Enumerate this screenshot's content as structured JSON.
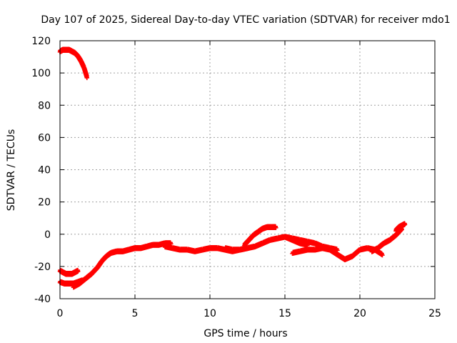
{
  "chart_data": {
    "type": "scatter",
    "title": "Day 107 of 2025, Sidereal Day-to-day VTEC variation (SDTVAR) for receiver mdo1",
    "xlabel": "GPS time / hours",
    "ylabel": "SDTVAR / TECUs",
    "xlim": [
      0,
      25
    ],
    "ylim": [
      -40,
      120
    ],
    "x_ticks": [
      0,
      5,
      10,
      15,
      20,
      25
    ],
    "y_ticks": [
      -40,
      -20,
      0,
      20,
      40,
      60,
      80,
      100,
      120
    ],
    "grid": true,
    "marker_color": "#ff0000",
    "series": [
      {
        "name": "arc-top",
        "x": [
          0.0,
          0.2,
          0.4,
          0.6,
          0.8,
          1.0,
          1.2,
          1.4,
          1.6,
          1.8
        ],
        "y": [
          113,
          114,
          114,
          114,
          113,
          112,
          110,
          107,
          103,
          97
        ]
      },
      {
        "name": "arc-early-upper",
        "x": [
          0.0,
          0.2,
          0.4,
          0.6,
          0.8,
          1.0,
          1.2
        ],
        "y": [
          -23,
          -24,
          -25,
          -25,
          -25,
          -24,
          -23
        ]
      },
      {
        "name": "arc-early-lower",
        "x": [
          0.0,
          0.3,
          0.6,
          0.9,
          1.2,
          1.5
        ],
        "y": [
          -30,
          -31,
          -31,
          -31,
          -30,
          -29
        ]
      },
      {
        "name": "arc-rise",
        "x": [
          0.9,
          1.3,
          1.7,
          2.1,
          2.5,
          2.8,
          3.1,
          3.4,
          3.8,
          4.2,
          4.6,
          5.0,
          5.4,
          5.8,
          6.2,
          6.6,
          7.0,
          7.4
        ],
        "y": [
          -33,
          -31,
          -28,
          -25,
          -21,
          -17,
          -14,
          -12,
          -11,
          -11,
          -10,
          -9,
          -9,
          -8,
          -7,
          -7,
          -6,
          -6
        ]
      },
      {
        "name": "arc-mid",
        "x": [
          7.0,
          7.5,
          8.0,
          8.5,
          9.0,
          9.5,
          10.0,
          10.5,
          11.0,
          11.5,
          12.0,
          12.5
        ],
        "y": [
          -8,
          -9,
          -10,
          -10,
          -11,
          -10,
          -9,
          -9,
          -10,
          -11,
          -10,
          -9
        ]
      },
      {
        "name": "arc-bump",
        "x": [
          12.3,
          12.6,
          12.9,
          13.2,
          13.5,
          13.8,
          14.1,
          14.4
        ],
        "y": [
          -7,
          -4,
          -1,
          1,
          3,
          4,
          4,
          4
        ]
      },
      {
        "name": "arc-late-a",
        "x": [
          11.0,
          11.5,
          12.0,
          12.5,
          13.0,
          13.5,
          14.0,
          14.5,
          15.0,
          15.5,
          16.0,
          16.5
        ],
        "y": [
          -9,
          -10,
          -10,
          -9,
          -8,
          -6,
          -4,
          -3,
          -2,
          -4,
          -6,
          -7
        ]
      },
      {
        "name": "arc-late-b",
        "x": [
          15.0,
          15.5,
          16.0,
          16.5,
          17.0,
          17.5,
          18.0,
          18.5
        ],
        "y": [
          -2,
          -3,
          -4,
          -5,
          -6,
          -8,
          -9,
          -10
        ]
      },
      {
        "name": "arc-late-c",
        "x": [
          15.5,
          16.0,
          16.5,
          17.0,
          17.5,
          18.0,
          18.5,
          19.0,
          19.5,
          20.0,
          20.5,
          21.0,
          21.5
        ],
        "y": [
          -12,
          -11,
          -10,
          -10,
          -9,
          -10,
          -13,
          -16,
          -14,
          -10,
          -9,
          -10,
          -13
        ]
      },
      {
        "name": "arc-late-d",
        "x": [
          20.8,
          21.2,
          21.6,
          22.0,
          22.4,
          22.8
        ],
        "y": [
          -11,
          -9,
          -6,
          -4,
          -1,
          3
        ]
      },
      {
        "name": "arc-end",
        "x": [
          22.4,
          22.6,
          22.8,
          23.0
        ],
        "y": [
          2,
          4,
          5,
          6
        ]
      }
    ]
  }
}
